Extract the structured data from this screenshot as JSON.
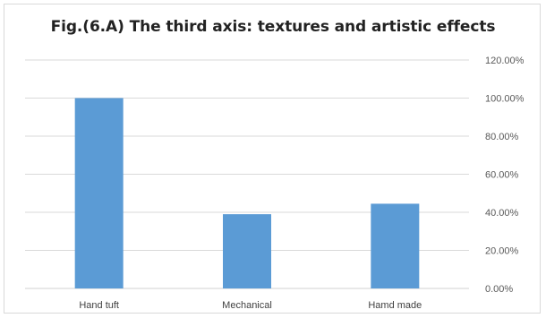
{
  "chart_data": {
    "type": "bar",
    "title": "Fig.(6.A) The third axis: textures and artistic effects",
    "categories": [
      "Hand tuft",
      "Mechanical",
      "Hamd made"
    ],
    "values": [
      100.0,
      39.0,
      44.5
    ],
    "unit": "%",
    "ylim": [
      0,
      120
    ],
    "yticks": [
      "0.00%",
      "20.00%",
      "40.00%",
      "60.00%",
      "80.00%",
      "100.00%",
      "120.00%"
    ],
    "y_axis_side": "right",
    "grid": true,
    "legend": "none",
    "colors": {
      "bar": "#5b9bd5",
      "grid": "#d9d9d9"
    }
  }
}
